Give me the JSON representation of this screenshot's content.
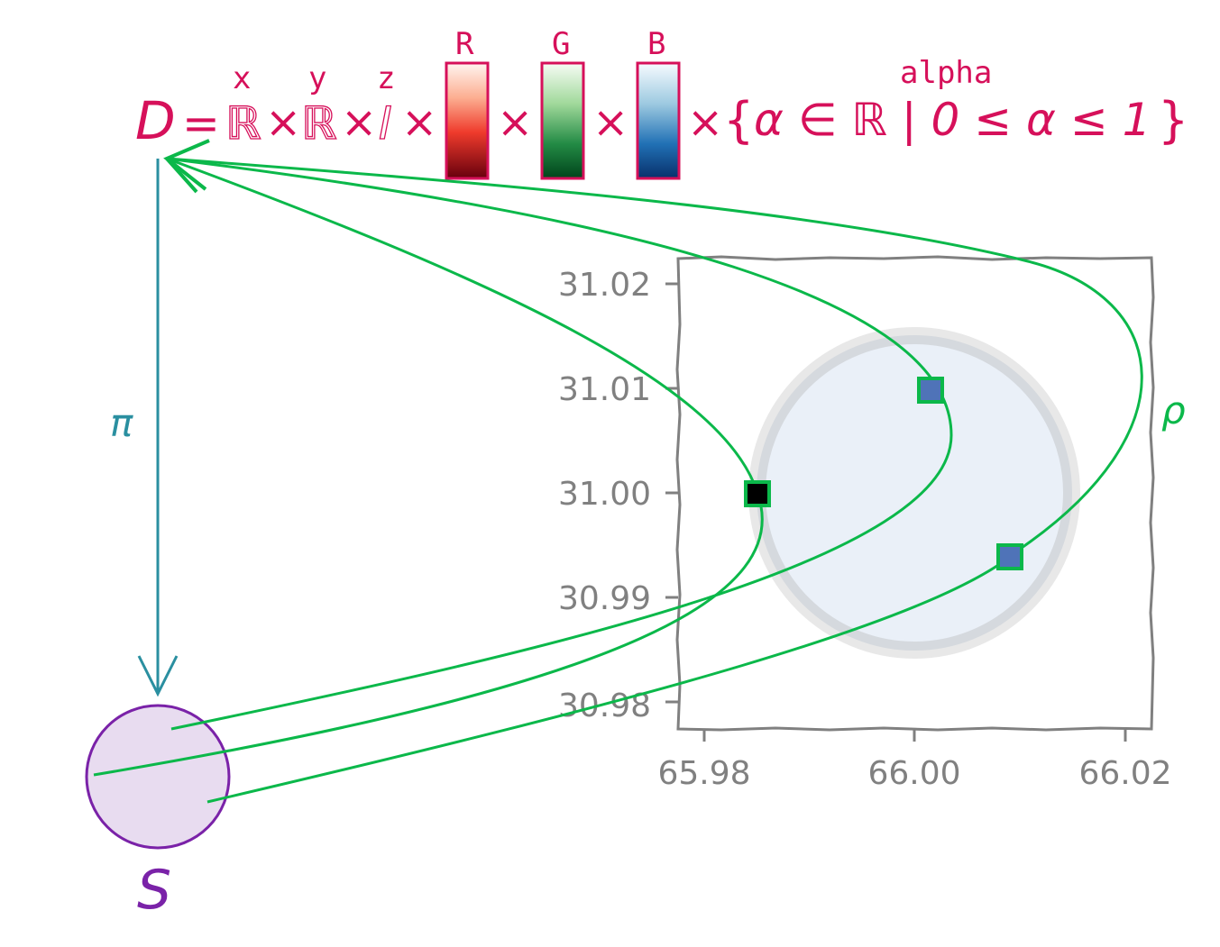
{
  "equation": {
    "D": "D",
    "equals": "=",
    "R1": "ℝ",
    "R2": "ℝ",
    "I": "I",
    "times": "×",
    "x_label": "x",
    "y_label": "y",
    "z_label": "z",
    "r_label": "R",
    "g_label": "G",
    "b_label": "B",
    "alpha_label": "alpha",
    "alpha_set_open": "{",
    "alpha_set_body": "α ∈ ℝ | 0 ≤ α ≤ 1",
    "alpha_set_close": "}"
  },
  "labels": {
    "pi": "π",
    "rho": "ρ",
    "S": "S"
  },
  "axes": {
    "x_ticks": [
      "65.98",
      "66.00",
      "66.02"
    ],
    "y_ticks": [
      "31.02",
      "31.01",
      "31.00",
      "30.99",
      "30.98"
    ]
  },
  "colors": {
    "equation": "#d6105a",
    "pi_arrow": "#2a8fa0",
    "rho_arrows": "#0bb84a",
    "S_circle": "#7a22a8",
    "S_fill": "#e8dcf0",
    "plot_frame": "#808080",
    "disc_fill": "#eaf0f8",
    "disc_ring": "#d5d9de",
    "marker_fill": "#4f73b8",
    "marker_center_fill": "#000000"
  },
  "markers": [
    {
      "x": 65.985,
      "y": 31.0,
      "fill": "#000000"
    },
    {
      "x": 66.0015,
      "y": 31.01,
      "fill": "#4f73b8"
    },
    {
      "x": 66.009,
      "y": 30.994,
      "fill": "#4f73b8"
    }
  ]
}
